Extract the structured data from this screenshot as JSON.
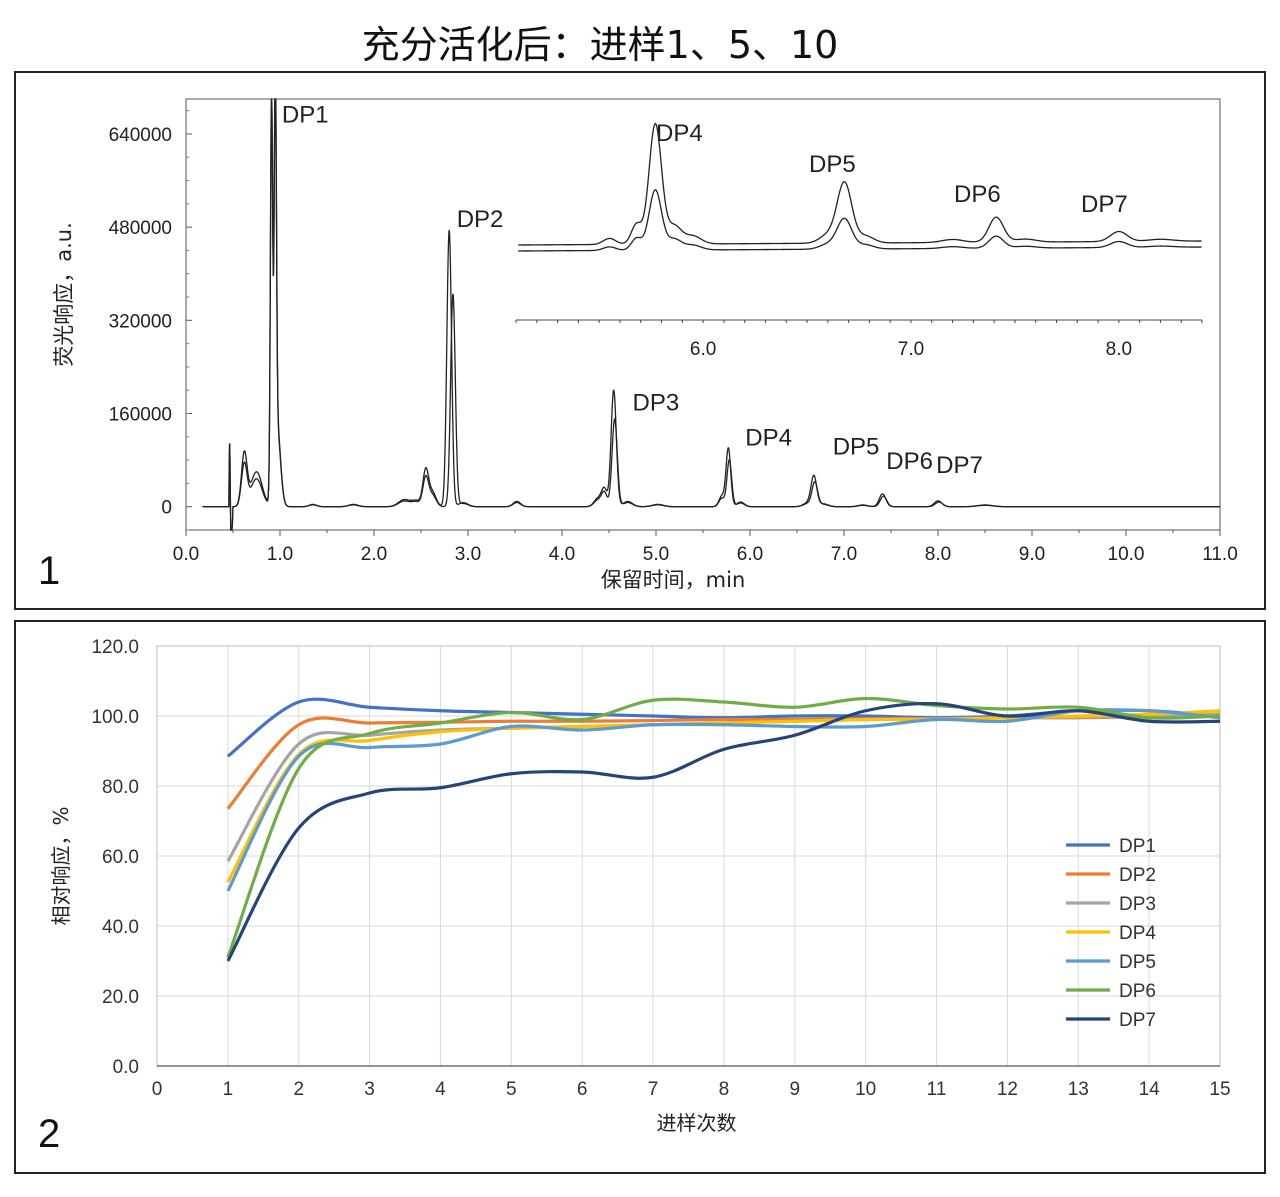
{
  "page": {
    "title": "充分活化后：进样1、5、10"
  },
  "chart_data": [
    {
      "type": "line",
      "panel_label": "1",
      "xlabel": "保留时间，min",
      "ylabel": "荧光响应，a.u.",
      "xlim": [
        0,
        11
      ],
      "ylim": [
        -40000,
        700000
      ],
      "x_ticks": [
        "0.0",
        "1.0",
        "2.0",
        "3.0",
        "4.0",
        "5.0",
        "6.0",
        "7.0",
        "8.0",
        "9.0",
        "10.0",
        "11.0"
      ],
      "y_ticks": [
        "0",
        "160000",
        "320000",
        "480000",
        "640000"
      ],
      "grid": false,
      "line_color": "#222222",
      "peaks": [
        {
          "label": "DP1",
          "rt": 0.92,
          "heights": [
            700000,
            660000
          ]
        },
        {
          "label": "DP2",
          "rt": 2.8,
          "heights": [
            475000,
            365000
          ]
        },
        {
          "label": "DP3",
          "rt": 4.55,
          "heights": [
            200000,
            150000
          ]
        },
        {
          "label": "DP4",
          "rt": 5.77,
          "heights": [
            100000,
            80000
          ]
        },
        {
          "label": "DP5",
          "rt": 6.68,
          "heights": [
            50000,
            40000
          ]
        },
        {
          "label": "DP6",
          "rt": 7.41,
          "heights": [
            22000,
            18000
          ]
        },
        {
          "label": "DP7",
          "rt": 8.0,
          "heights": [
            10000,
            8000
          ]
        }
      ],
      "inset": {
        "xlim": [
          5.1,
          8.4
        ],
        "x_ticks": [
          "6.0",
          "7.0",
          "8.0"
        ],
        "peak_labels": [
          "DP4",
          "DP5",
          "DP6",
          "DP7"
        ]
      }
    },
    {
      "type": "line",
      "panel_label": "2",
      "xlabel": "进样次数",
      "ylabel": "相对响应，%",
      "xlim": [
        0,
        15
      ],
      "ylim": [
        0,
        120
      ],
      "x_ticks": [
        "0",
        "1",
        "2",
        "3",
        "4",
        "5",
        "6",
        "7",
        "8",
        "9",
        "10",
        "11",
        "12",
        "13",
        "14",
        "15"
      ],
      "y_ticks": [
        "0.0",
        "20.0",
        "40.0",
        "60.0",
        "80.0",
        "100.0",
        "120.0"
      ],
      "grid": true,
      "legend_position": "right",
      "x": [
        1,
        2,
        3,
        4,
        5,
        6,
        7,
        8,
        9,
        10,
        11,
        12,
        13,
        14,
        15
      ],
      "series": [
        {
          "name": "DP1",
          "color": "#4472C4",
          "values": [
            88.5,
            104,
            102.5,
            101.5,
            101,
            100.5,
            100,
            99.5,
            100,
            100,
            99.5,
            100,
            101.5,
            101.5,
            100
          ]
        },
        {
          "name": "DP2",
          "color": "#ED7D31",
          "values": [
            73.5,
            97.5,
            98,
            98.2,
            98.5,
            98.5,
            98.7,
            99,
            99,
            99.2,
            99.3,
            99.5,
            99.5,
            99.8,
            100
          ]
        },
        {
          "name": "DP3",
          "color": "#A5A5A5",
          "values": [
            58.5,
            92,
            94.5,
            96,
            96.5,
            97,
            97.5,
            98,
            98.5,
            99,
            99.2,
            99.5,
            99.7,
            100,
            100.5
          ]
        },
        {
          "name": "DP4",
          "color": "#FFC000",
          "values": [
            52.5,
            89,
            93,
            95.5,
            96.5,
            97,
            97.5,
            98,
            98.5,
            99,
            99,
            99.5,
            100,
            100.5,
            101.5
          ]
        },
        {
          "name": "DP5",
          "color": "#5B9BD5",
          "values": [
            50,
            88.5,
            91,
            92,
            97,
            96,
            97.5,
            97.5,
            97,
            97,
            99,
            98.5,
            101.5,
            101.5,
            99.5
          ]
        },
        {
          "name": "DP6",
          "color": "#70AD47",
          "values": [
            31,
            85,
            95,
            98,
            101,
            99,
            104.5,
            104,
            102.5,
            105,
            103,
            102,
            102.5,
            99.5,
            100
          ]
        },
        {
          "name": "DP7",
          "color": "#264478",
          "values": [
            30,
            68,
            78,
            79.5,
            83.5,
            84,
            82.5,
            90.5,
            94.5,
            101.5,
            103.5,
            100,
            101.5,
            98.5,
            98.5
          ]
        }
      ]
    }
  ]
}
